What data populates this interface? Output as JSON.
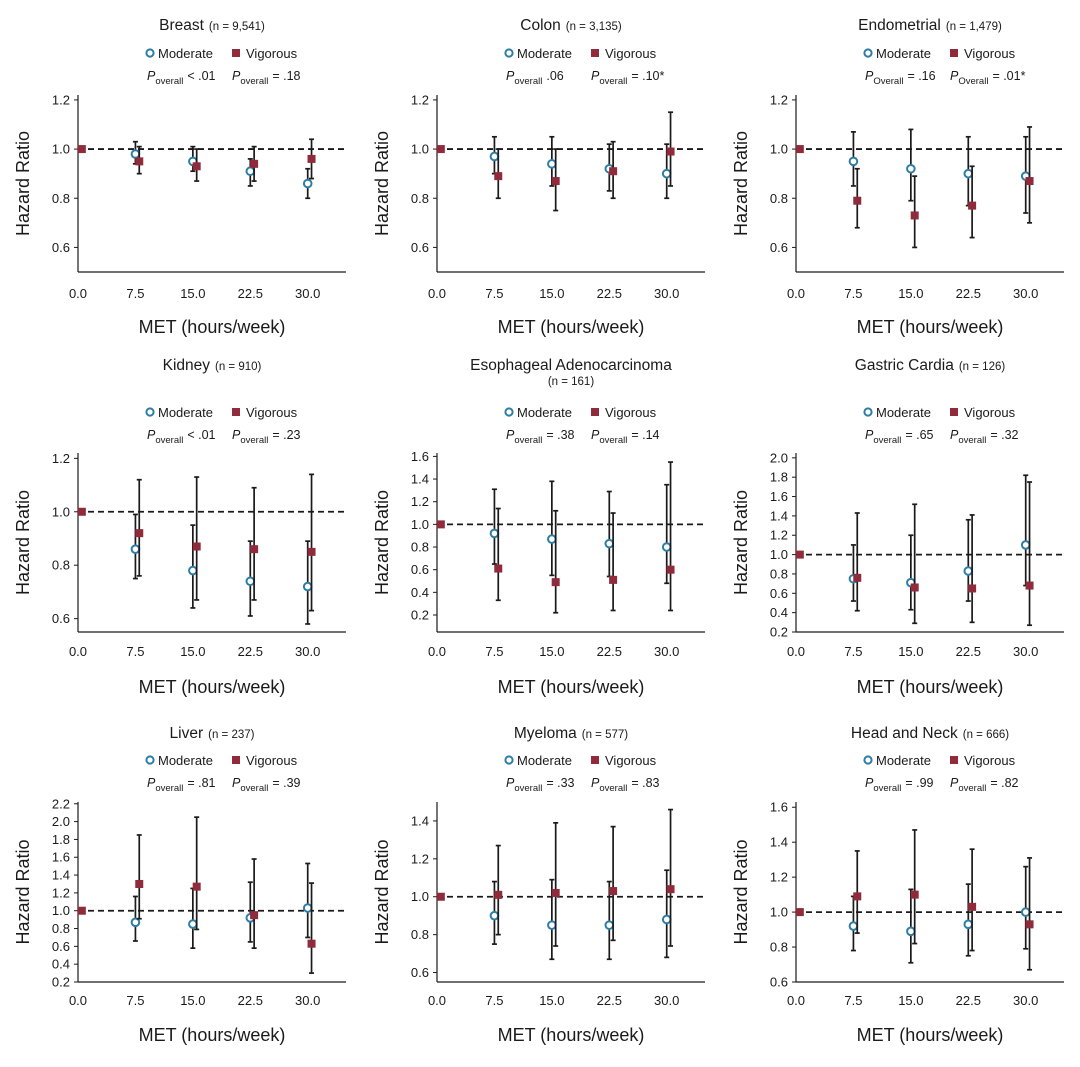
{
  "colors": {
    "moderate_marker_edge": "#2e7da6",
    "vigorous_marker": "#8f2b3a",
    "text": "#1a1a1a"
  },
  "icon_names": {
    "moderate": "open-circle-icon",
    "vigorous": "filled-square-icon"
  },
  "chart_data": [
    {
      "type": "scatter",
      "title": "Breast",
      "n_label": "(n = 9,541)",
      "subtitle": "",
      "legend": [
        "Moderate",
        "Vigorous"
      ],
      "legend_placement": "top-center",
      "p_overall": [
        {
          "label": "P",
          "sub": "overall",
          "value": "< .01"
        },
        {
          "label": "P",
          "sub": "overall",
          "value": "= .18"
        }
      ],
      "xlabel": "MET (hours/week)",
      "ylabel": "Hazard Ratio",
      "xticks": [
        "0.0",
        "7.5",
        "15.0",
        "22.5",
        "30.0"
      ],
      "xlim": [
        0,
        35
      ],
      "yticks": [
        "0.6",
        "0.8",
        "1.0",
        "1.2"
      ],
      "ylim": [
        0.5,
        1.22
      ],
      "reference_line": 1.0,
      "grid": false,
      "series": [
        {
          "name": "Moderate",
          "x": [
            7.5,
            15,
            22.5,
            30
          ],
          "y": [
            0.98,
            0.95,
            0.91,
            0.86
          ],
          "lower": [
            0.94,
            0.91,
            0.85,
            0.8
          ],
          "upper": [
            1.03,
            1.01,
            0.96,
            0.92
          ]
        },
        {
          "name": "Vigorous",
          "x": [
            0.5,
            8,
            15.5,
            23,
            30.5
          ],
          "y": [
            1.0,
            0.95,
            0.93,
            0.94,
            0.96
          ],
          "lower": [
            null,
            0.9,
            0.87,
            0.87,
            0.88
          ],
          "upper": [
            null,
            1.01,
            1.0,
            1.01,
            1.04
          ]
        }
      ]
    },
    {
      "type": "scatter",
      "title": "Colon",
      "n_label": "(n = 3,135)",
      "subtitle": "",
      "legend": [
        "Moderate",
        "Vigorous"
      ],
      "legend_placement": "top-center",
      "p_overall": [
        {
          "label": "P",
          "sub": "overall",
          "value": ".06"
        },
        {
          "label": "P",
          "sub": "overall",
          "value": "= .10*"
        }
      ],
      "xlabel": "MET (hours/week)",
      "ylabel": "Hazard Ratio",
      "xticks": [
        "0.0",
        "7.5",
        "15.0",
        "22.5",
        "30.0"
      ],
      "xlim": [
        0,
        35
      ],
      "yticks": [
        "0.6",
        "0.8",
        "1.0",
        "1.2"
      ],
      "ylim": [
        0.5,
        1.22
      ],
      "reference_line": 1.0,
      "grid": false,
      "series": [
        {
          "name": "Moderate",
          "x": [
            7.5,
            15,
            22.5,
            30
          ],
          "y": [
            0.97,
            0.94,
            0.92,
            0.9
          ],
          "lower": [
            0.9,
            0.85,
            0.83,
            0.8
          ],
          "upper": [
            1.05,
            1.05,
            1.02,
            1.02
          ]
        },
        {
          "name": "Vigorous",
          "x": [
            0.5,
            8,
            15.5,
            23,
            30.5
          ],
          "y": [
            1.0,
            0.89,
            0.87,
            0.91,
            0.99
          ],
          "lower": [
            null,
            0.8,
            0.75,
            0.8,
            0.85
          ],
          "upper": [
            null,
            1.0,
            1.0,
            1.03,
            1.15
          ]
        }
      ]
    },
    {
      "type": "scatter",
      "title": "Endometrial",
      "n_label": "(n = 1,479)",
      "subtitle": "",
      "legend": [
        "Moderate",
        "Vigorous"
      ],
      "legend_placement": "top-center",
      "p_overall": [
        {
          "label": "P",
          "sub": "Overall",
          "value": "= .16"
        },
        {
          "label": "P",
          "sub": "Overall",
          "value": "= .01*"
        }
      ],
      "xlabel": "MET (hours/week)",
      "ylabel": "Hazard Ratio",
      "xticks": [
        "0.0",
        "7.5",
        "15.0",
        "22.5",
        "30.0"
      ],
      "xlim": [
        0,
        35
      ],
      "yticks": [
        "0.6",
        "0.8",
        "1.0",
        "1.2"
      ],
      "ylim": [
        0.5,
        1.22
      ],
      "reference_line": 1.0,
      "grid": false,
      "series": [
        {
          "name": "Moderate",
          "x": [
            7.5,
            15,
            22.5,
            30
          ],
          "y": [
            0.95,
            0.92,
            0.9,
            0.89
          ],
          "lower": [
            0.85,
            0.79,
            0.77,
            0.74
          ],
          "upper": [
            1.07,
            1.08,
            1.05,
            1.05
          ]
        },
        {
          "name": "Vigorous",
          "x": [
            0.5,
            8,
            15.5,
            23,
            30.5
          ],
          "y": [
            1.0,
            0.79,
            0.73,
            0.77,
            0.87
          ],
          "lower": [
            null,
            0.68,
            0.6,
            0.64,
            0.7
          ],
          "upper": [
            null,
            0.92,
            0.89,
            0.93,
            1.09
          ]
        }
      ]
    },
    {
      "type": "scatter",
      "title": "Kidney",
      "n_label": "(n = 910)",
      "subtitle": "",
      "legend": [
        "Moderate",
        "Vigorous"
      ],
      "legend_placement": "top-center",
      "p_overall": [
        {
          "label": "P",
          "sub": "overall",
          "value": "< .01"
        },
        {
          "label": "P",
          "sub": "overall",
          "value": "= .23"
        }
      ],
      "xlabel": "MET (hours/week)",
      "ylabel": "Hazard Ratio",
      "xticks": [
        "0.0",
        "7.5",
        "15.0",
        "22.5",
        "30.0"
      ],
      "xlim": [
        0,
        35
      ],
      "yticks": [
        "0.6",
        "0.8",
        "1.0",
        "1.2"
      ],
      "ylim": [
        0.55,
        1.22
      ],
      "reference_line": 1.0,
      "grid": false,
      "series": [
        {
          "name": "Moderate",
          "x": [
            7.5,
            15,
            22.5,
            30
          ],
          "y": [
            0.86,
            0.78,
            0.74,
            0.72
          ],
          "lower": [
            0.75,
            0.64,
            0.61,
            0.58
          ],
          "upper": [
            0.99,
            0.95,
            0.89,
            0.89
          ]
        },
        {
          "name": "Vigorous",
          "x": [
            0.5,
            8,
            15.5,
            23,
            30.5
          ],
          "y": [
            1.0,
            0.92,
            0.87,
            0.86,
            0.85
          ],
          "lower": [
            null,
            0.76,
            0.67,
            0.67,
            0.63
          ],
          "upper": [
            null,
            1.12,
            1.13,
            1.09,
            1.14
          ]
        }
      ]
    },
    {
      "type": "scatter",
      "title": "Esophageal Adenocarcinoma",
      "n_label": "",
      "subtitle": "(n = 161)",
      "legend": [
        "Moderate",
        "Vigorous"
      ],
      "legend_placement": "top-center",
      "p_overall": [
        {
          "label": "P",
          "sub": "overall",
          "value": "= .38"
        },
        {
          "label": "P",
          "sub": "overall",
          "value": "= .14"
        }
      ],
      "xlabel": "MET (hours/week)",
      "ylabel": "Hazard Ratio",
      "xticks": [
        "0.0",
        "7.5",
        "15.0",
        "22.5",
        "30.0"
      ],
      "xlim": [
        0,
        35
      ],
      "yticks": [
        "0.2",
        "0.4",
        "0.6",
        "0.8",
        "1.0",
        "1.2",
        "1.4",
        "1.6"
      ],
      "ylim": [
        0.05,
        1.63
      ],
      "reference_line": 1.0,
      "grid": false,
      "series": [
        {
          "name": "Moderate",
          "x": [
            7.5,
            15,
            22.5,
            30
          ],
          "y": [
            0.92,
            0.87,
            0.83,
            0.8
          ],
          "lower": [
            0.65,
            0.55,
            0.54,
            0.48
          ],
          "upper": [
            1.31,
            1.38,
            1.29,
            1.35
          ]
        },
        {
          "name": "Vigorous",
          "x": [
            0.5,
            8,
            15.5,
            23,
            30.5
          ],
          "y": [
            1.0,
            0.61,
            0.49,
            0.51,
            0.6
          ],
          "lower": [
            null,
            0.33,
            0.22,
            0.24,
            0.24
          ],
          "upper": [
            null,
            1.14,
            1.12,
            1.1,
            1.55
          ]
        }
      ]
    },
    {
      "type": "scatter",
      "title": "Gastric Cardia",
      "n_label": "(n = 126)",
      "subtitle": "",
      "legend": [
        "Moderate",
        "Vigorous"
      ],
      "legend_placement": "top-center",
      "p_overall": [
        {
          "label": "P",
          "sub": "overall",
          "value": "= .65"
        },
        {
          "label": "P",
          "sub": "overall",
          "value": "= .32"
        }
      ],
      "xlabel": "MET (hours/week)",
      "ylabel": "Hazard Ratio",
      "xticks": [
        "0.0",
        "7.5",
        "15.0",
        "22.5",
        "30.0"
      ],
      "xlim": [
        0,
        35
      ],
      "yticks": [
        "0.2",
        "0.4",
        "0.6",
        "0.8",
        "1.0",
        "1.2",
        "1.4",
        "1.6",
        "1.8",
        "2.0"
      ],
      "ylim": [
        0.2,
        2.05
      ],
      "reference_line": 1.0,
      "grid": false,
      "series": [
        {
          "name": "Moderate",
          "x": [
            7.5,
            15,
            22.5,
            30
          ],
          "y": [
            0.75,
            0.71,
            0.83,
            1.1
          ],
          "lower": [
            0.52,
            0.43,
            0.52,
            0.68
          ],
          "upper": [
            1.1,
            1.2,
            1.36,
            1.82
          ]
        },
        {
          "name": "Vigorous",
          "x": [
            0.5,
            8,
            15.5,
            23,
            30.5
          ],
          "y": [
            1.0,
            0.76,
            0.66,
            0.65,
            0.68
          ],
          "lower": [
            null,
            0.42,
            0.29,
            0.3,
            0.27
          ],
          "upper": [
            null,
            1.43,
            1.52,
            1.41,
            1.75
          ]
        }
      ]
    },
    {
      "type": "scatter",
      "title": "Liver",
      "n_label": "(n = 237)",
      "subtitle": "",
      "legend": [
        "Moderate",
        "Vigorous"
      ],
      "legend_placement": "top-center",
      "p_overall": [
        {
          "label": "P",
          "sub": "overall",
          "value": "= .81"
        },
        {
          "label": "P",
          "sub": "overall",
          "value": "= .39"
        }
      ],
      "xlabel": "MET (hours/week)",
      "ylabel": "Hazard Ratio",
      "xticks": [
        "0.0",
        "7.5",
        "15.0",
        "22.5",
        "30.0"
      ],
      "xlim": [
        0,
        35
      ],
      "yticks": [
        "0.2",
        "0.4",
        "0.6",
        "0.8",
        "1.0",
        "1.2",
        "1.4",
        "1.6",
        "1.8",
        "2.0",
        "2.2"
      ],
      "ylim": [
        0.2,
        2.22
      ],
      "reference_line": 1.0,
      "grid": false,
      "series": [
        {
          "name": "Moderate",
          "x": [
            7.5,
            15,
            22.5,
            30
          ],
          "y": [
            0.87,
            0.85,
            0.92,
            1.03
          ],
          "lower": [
            0.66,
            0.58,
            0.65,
            0.7
          ],
          "upper": [
            1.16,
            1.25,
            1.32,
            1.53
          ]
        },
        {
          "name": "Vigorous",
          "x": [
            0.5,
            8,
            15.5,
            23,
            30.5
          ],
          "y": [
            1.0,
            1.3,
            1.27,
            0.95,
            0.63
          ],
          "lower": [
            null,
            0.91,
            0.79,
            0.58,
            0.3
          ],
          "upper": [
            null,
            1.85,
            2.05,
            1.58,
            1.31
          ]
        }
      ]
    },
    {
      "type": "scatter",
      "title": "Myeloma",
      "n_label": "(n = 577)",
      "subtitle": "",
      "legend": [
        "Moderate",
        "Vigorous"
      ],
      "legend_placement": "top-center",
      "p_overall": [
        {
          "label": "P",
          "sub": "overall",
          "value": "= .33"
        },
        {
          "label": "P",
          "sub": "overall",
          "value": "= .83"
        }
      ],
      "xlabel": "MET (hours/week)",
      "ylabel": "Hazard Ratio",
      "xticks": [
        "0.0",
        "7.5",
        "15.0",
        "22.5",
        "30.0"
      ],
      "xlim": [
        0,
        35
      ],
      "yticks": [
        "0.6",
        "0.8",
        "1.0",
        "1.2",
        "1.4"
      ],
      "ylim": [
        0.55,
        1.5
      ],
      "reference_line": 1.0,
      "grid": false,
      "series": [
        {
          "name": "Moderate",
          "x": [
            7.5,
            15,
            22.5,
            30
          ],
          "y": [
            0.9,
            0.85,
            0.85,
            0.88
          ],
          "lower": [
            0.75,
            0.67,
            0.67,
            0.68
          ],
          "upper": [
            1.08,
            1.09,
            1.08,
            1.14
          ]
        },
        {
          "name": "Vigorous",
          "x": [
            0.5,
            8,
            15.5,
            23,
            30.5
          ],
          "y": [
            1.0,
            1.01,
            1.02,
            1.03,
            1.04
          ],
          "lower": [
            null,
            0.8,
            0.74,
            0.77,
            0.74
          ],
          "upper": [
            null,
            1.27,
            1.39,
            1.37,
            1.46
          ]
        }
      ]
    },
    {
      "type": "scatter",
      "title": "Head and Neck",
      "n_label": "(n = 666)",
      "subtitle": "",
      "legend": [
        "Moderate",
        "Vigorous"
      ],
      "legend_placement": "top-center",
      "p_overall": [
        {
          "label": "P",
          "sub": "overall",
          "value": "= .99"
        },
        {
          "label": "P",
          "sub": "overall",
          "value": "= .82"
        }
      ],
      "xlabel": "MET (hours/week)",
      "ylabel": "Hazard Ratio",
      "xticks": [
        "0.0",
        "7.5",
        "15.0",
        "22.5",
        "30.0"
      ],
      "xlim": [
        0,
        35
      ],
      "yticks": [
        "0.6",
        "0.8",
        "1.0",
        "1.2",
        "1.4",
        "1.6"
      ],
      "ylim": [
        0.6,
        1.63
      ],
      "reference_line": 1.0,
      "grid": false,
      "series": [
        {
          "name": "Moderate",
          "x": [
            7.5,
            15,
            22.5,
            30
          ],
          "y": [
            0.92,
            0.89,
            0.93,
            1.0
          ],
          "lower": [
            0.78,
            0.71,
            0.75,
            0.79
          ],
          "upper": [
            1.09,
            1.13,
            1.16,
            1.26
          ]
        },
        {
          "name": "Vigorous",
          "x": [
            0.5,
            8,
            15.5,
            23,
            30.5
          ],
          "y": [
            1.0,
            1.09,
            1.1,
            1.03,
            0.93
          ],
          "lower": [
            null,
            0.88,
            0.82,
            0.78,
            0.67
          ],
          "upper": [
            null,
            1.35,
            1.47,
            1.36,
            1.31
          ]
        }
      ]
    }
  ]
}
